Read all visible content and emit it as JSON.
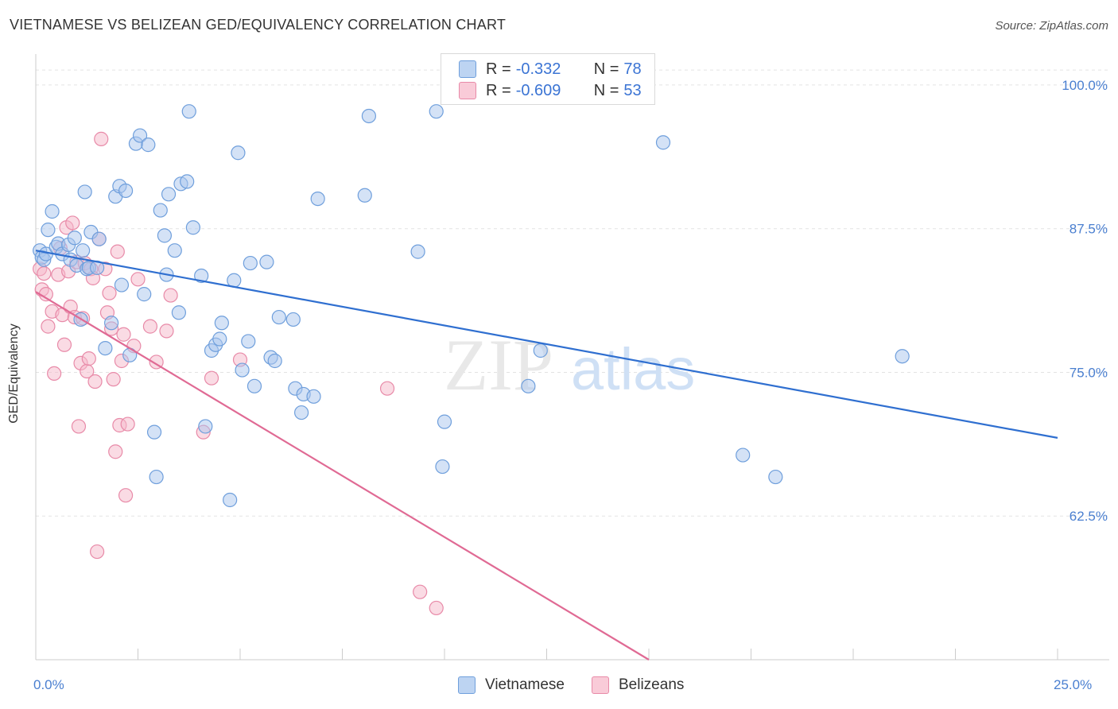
{
  "title": "VIETNAMESE VS BELIZEAN GED/EQUIVALENCY CORRELATION CHART",
  "source": "Source: ZipAtlas.com",
  "watermark": {
    "zip": "ZIP",
    "atlas": "atlas"
  },
  "legend": {
    "r_label": "R =",
    "n_label": "N =",
    "rows": [
      {
        "r": "-0.332",
        "n": "78"
      },
      {
        "r": "-0.609",
        "n": "53"
      }
    ]
  },
  "colors": {
    "blue_fill": "#a9c6ee",
    "blue_stroke": "#6f9fdc",
    "blue_line": "#2f6fd0",
    "pink_fill": "#f5b7c9",
    "pink_stroke": "#e88aa8",
    "pink_line": "#e06a94",
    "axis_text": "#4a7fd0",
    "grid": "#e3e3e3"
  },
  "chart_data": {
    "type": "scatter",
    "title": "VIETNAMESE VS BELIZEAN GED/EQUIVALENCY CORRELATION CHART",
    "xlabel": "",
    "ylabel": "GED/Equivalency",
    "xlim": [
      0,
      25
    ],
    "ylim": [
      50,
      102
    ],
    "x_tick_labels": [
      "0.0%",
      "25.0%"
    ],
    "y_ticks": [
      62.5,
      75.0,
      87.5,
      100.0
    ],
    "y_tick_labels": [
      "62.5%",
      "75.0%",
      "87.5%",
      "100.0%"
    ],
    "series": [
      {
        "name": "Vietnamese",
        "color": "#a9c6ee",
        "trend": {
          "x": [
            0,
            25
          ],
          "y": [
            85.6,
            69.3
          ]
        },
        "points": [
          [
            0.1,
            85.6
          ],
          [
            0.15,
            85.0
          ],
          [
            0.2,
            84.8
          ],
          [
            0.25,
            85.3
          ],
          [
            0.3,
            87.4
          ],
          [
            0.4,
            89.0
          ],
          [
            0.5,
            85.9
          ],
          [
            0.55,
            86.2
          ],
          [
            0.65,
            85.3
          ],
          [
            0.8,
            86.1
          ],
          [
            0.85,
            84.8
          ],
          [
            0.95,
            86.7
          ],
          [
            1.0,
            84.3
          ],
          [
            1.1,
            79.6
          ],
          [
            1.15,
            85.6
          ],
          [
            1.2,
            90.7
          ],
          [
            1.25,
            84.0
          ],
          [
            1.3,
            84.1
          ],
          [
            1.35,
            87.2
          ],
          [
            1.5,
            84.1
          ],
          [
            1.55,
            86.6
          ],
          [
            1.7,
            77.1
          ],
          [
            1.85,
            79.3
          ],
          [
            1.95,
            90.3
          ],
          [
            2.05,
            91.2
          ],
          [
            2.1,
            82.6
          ],
          [
            2.2,
            90.8
          ],
          [
            2.3,
            76.5
          ],
          [
            2.45,
            94.9
          ],
          [
            2.55,
            95.6
          ],
          [
            2.65,
            81.8
          ],
          [
            2.75,
            94.8
          ],
          [
            2.9,
            69.8
          ],
          [
            2.95,
            65.9
          ],
          [
            3.05,
            89.1
          ],
          [
            3.15,
            86.9
          ],
          [
            3.2,
            83.5
          ],
          [
            3.25,
            90.5
          ],
          [
            3.4,
            85.6
          ],
          [
            3.5,
            80.2
          ],
          [
            3.55,
            91.4
          ],
          [
            3.7,
            91.6
          ],
          [
            3.75,
            97.7
          ],
          [
            3.85,
            87.6
          ],
          [
            4.05,
            83.4
          ],
          [
            4.15,
            70.3
          ],
          [
            4.3,
            76.9
          ],
          [
            4.4,
            77.4
          ],
          [
            4.5,
            77.9
          ],
          [
            4.55,
            79.3
          ],
          [
            4.75,
            63.9
          ],
          [
            4.85,
            83.0
          ],
          [
            4.95,
            94.1
          ],
          [
            5.05,
            75.2
          ],
          [
            5.2,
            77.7
          ],
          [
            5.25,
            84.5
          ],
          [
            5.35,
            73.8
          ],
          [
            5.65,
            84.6
          ],
          [
            5.75,
            76.3
          ],
          [
            5.85,
            76.0
          ],
          [
            5.95,
            79.8
          ],
          [
            6.3,
            79.6
          ],
          [
            6.35,
            73.6
          ],
          [
            6.5,
            71.5
          ],
          [
            6.55,
            73.1
          ],
          [
            6.8,
            72.9
          ],
          [
            6.9,
            90.1
          ],
          [
            8.05,
            90.4
          ],
          [
            8.15,
            97.3
          ],
          [
            9.35,
            85.5
          ],
          [
            9.8,
            97.7
          ],
          [
            9.95,
            66.8
          ],
          [
            10.0,
            70.7
          ],
          [
            12.05,
            73.8
          ],
          [
            12.35,
            76.9
          ],
          [
            15.35,
            95.0
          ],
          [
            17.3,
            67.8
          ],
          [
            18.1,
            65.9
          ],
          [
            21.2,
            76.4
          ]
        ]
      },
      {
        "name": "Belizeans",
        "color": "#f5b7c9",
        "trend": {
          "x": [
            0,
            15
          ],
          "y": [
            82.0,
            50.0
          ]
        },
        "points": [
          [
            0.1,
            84.0
          ],
          [
            0.15,
            82.2
          ],
          [
            0.2,
            83.6
          ],
          [
            0.25,
            81.8
          ],
          [
            0.3,
            79.0
          ],
          [
            0.4,
            80.3
          ],
          [
            0.45,
            74.9
          ],
          [
            0.55,
            83.5
          ],
          [
            0.6,
            85.8
          ],
          [
            0.65,
            80.0
          ],
          [
            0.7,
            77.4
          ],
          [
            0.75,
            87.6
          ],
          [
            0.8,
            83.8
          ],
          [
            0.85,
            80.7
          ],
          [
            0.9,
            88.0
          ],
          [
            0.95,
            79.8
          ],
          [
            1.0,
            84.6
          ],
          [
            1.05,
            70.3
          ],
          [
            1.1,
            75.8
          ],
          [
            1.15,
            79.7
          ],
          [
            1.2,
            84.5
          ],
          [
            1.25,
            75.1
          ],
          [
            1.3,
            76.2
          ],
          [
            1.35,
            84.0
          ],
          [
            1.4,
            83.2
          ],
          [
            1.45,
            74.2
          ],
          [
            1.5,
            59.4
          ],
          [
            1.55,
            86.6
          ],
          [
            1.6,
            95.3
          ],
          [
            1.7,
            84.0
          ],
          [
            1.75,
            80.2
          ],
          [
            1.8,
            81.9
          ],
          [
            1.85,
            78.8
          ],
          [
            1.9,
            74.4
          ],
          [
            1.95,
            68.1
          ],
          [
            2.0,
            85.5
          ],
          [
            2.05,
            70.4
          ],
          [
            2.1,
            76.0
          ],
          [
            2.15,
            78.3
          ],
          [
            2.2,
            64.3
          ],
          [
            2.25,
            70.5
          ],
          [
            2.4,
            77.3
          ],
          [
            2.5,
            83.1
          ],
          [
            2.8,
            79.0
          ],
          [
            2.95,
            75.9
          ],
          [
            3.2,
            78.6
          ],
          [
            3.3,
            81.7
          ],
          [
            4.1,
            69.8
          ],
          [
            4.3,
            74.5
          ],
          [
            5.0,
            76.1
          ],
          [
            8.6,
            73.6
          ],
          [
            9.4,
            55.9
          ],
          [
            9.8,
            54.5
          ]
        ]
      }
    ]
  }
}
